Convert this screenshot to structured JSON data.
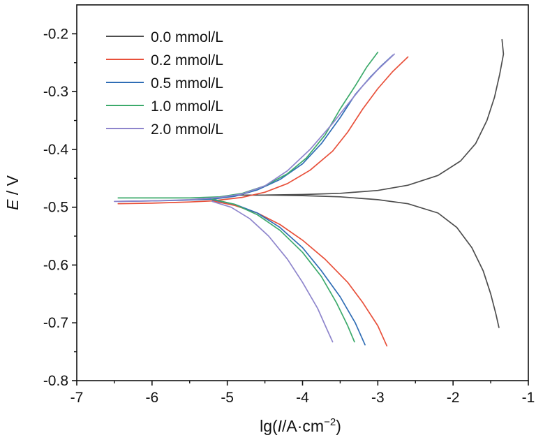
{
  "chart_data": {
    "type": "line",
    "xlabel": "lg(I/A·cm⁻²)",
    "xlabel_parts": {
      "prefix": "lg(",
      "italic": "I",
      "unit": "/A·cm",
      "sup": "−2",
      "suffix": ")"
    },
    "ylabel": "E / V",
    "ylabel_parts": {
      "italic": "E",
      "rest": " / V"
    },
    "xlim": [
      -7,
      -1
    ],
    "ylim": [
      -0.8,
      -0.15
    ],
    "x_ticks": [
      -7,
      -6,
      -5,
      -4,
      -3,
      -2,
      -1
    ],
    "y_ticks": [
      -0.8,
      -0.7,
      -0.6,
      -0.5,
      -0.4,
      -0.3,
      -0.2
    ],
    "x_tick_labels": [
      "-7",
      "-6",
      "-5",
      "-4",
      "-3",
      "-2",
      "-1"
    ],
    "y_tick_labels": [
      "-0.8",
      "-0.7",
      "-0.6",
      "-0.5",
      "-0.4",
      "-0.3",
      "-0.2"
    ],
    "legend_position": "top-left",
    "series": [
      {
        "name": "0.0 mmol/L",
        "color": "#4d4d4d",
        "anodic": [
          [
            -4.85,
            -0.479
          ],
          [
            -4.5,
            -0.479
          ],
          [
            -4.0,
            -0.478
          ],
          [
            -3.5,
            -0.476
          ],
          [
            -3.0,
            -0.471
          ],
          [
            -2.6,
            -0.462
          ],
          [
            -2.2,
            -0.445
          ],
          [
            -1.9,
            -0.42
          ],
          [
            -1.7,
            -0.39
          ],
          [
            -1.55,
            -0.35
          ],
          [
            -1.45,
            -0.31
          ],
          [
            -1.38,
            -0.27
          ],
          [
            -1.33,
            -0.235
          ],
          [
            -1.35,
            -0.21
          ]
        ],
        "cathodic": [
          [
            -4.85,
            -0.479
          ],
          [
            -4.5,
            -0.479
          ],
          [
            -4.0,
            -0.48
          ],
          [
            -3.5,
            -0.482
          ],
          [
            -3.0,
            -0.487
          ],
          [
            -2.6,
            -0.494
          ],
          [
            -2.2,
            -0.51
          ],
          [
            -1.95,
            -0.535
          ],
          [
            -1.75,
            -0.57
          ],
          [
            -1.6,
            -0.61
          ],
          [
            -1.5,
            -0.65
          ],
          [
            -1.43,
            -0.685
          ],
          [
            -1.39,
            -0.708
          ]
        ]
      },
      {
        "name": "0.2 mmol/L",
        "color": "#e8503a",
        "anodic": [
          [
            -6.45,
            -0.494
          ],
          [
            -6.0,
            -0.493
          ],
          [
            -5.5,
            -0.491
          ],
          [
            -5.2,
            -0.489
          ],
          [
            -4.8,
            -0.483
          ],
          [
            -4.5,
            -0.474
          ],
          [
            -4.2,
            -0.459
          ],
          [
            -3.9,
            -0.436
          ],
          [
            -3.6,
            -0.403
          ],
          [
            -3.4,
            -0.37
          ],
          [
            -3.2,
            -0.33
          ],
          [
            -3.0,
            -0.295
          ],
          [
            -2.8,
            -0.265
          ],
          [
            -2.6,
            -0.24
          ]
        ],
        "cathodic": [
          [
            -5.2,
            -0.489
          ],
          [
            -4.9,
            -0.497
          ],
          [
            -4.6,
            -0.51
          ],
          [
            -4.3,
            -0.53
          ],
          [
            -4.0,
            -0.557
          ],
          [
            -3.7,
            -0.59
          ],
          [
            -3.4,
            -0.63
          ],
          [
            -3.2,
            -0.665
          ],
          [
            -3.0,
            -0.705
          ],
          [
            -2.88,
            -0.74
          ]
        ]
      },
      {
        "name": "0.5 mmol/L",
        "color": "#2f6db5",
        "anodic": [
          [
            -6.45,
            -0.49
          ],
          [
            -6.0,
            -0.489
          ],
          [
            -5.6,
            -0.488
          ],
          [
            -5.2,
            -0.486
          ],
          [
            -4.9,
            -0.481
          ],
          [
            -4.6,
            -0.47
          ],
          [
            -4.3,
            -0.452
          ],
          [
            -4.0,
            -0.425
          ],
          [
            -3.75,
            -0.39
          ],
          [
            -3.5,
            -0.345
          ],
          [
            -3.3,
            -0.305
          ],
          [
            -3.1,
            -0.275
          ],
          [
            -2.95,
            -0.255
          ],
          [
            -2.8,
            -0.237
          ]
        ],
        "cathodic": [
          [
            -5.2,
            -0.487
          ],
          [
            -4.9,
            -0.495
          ],
          [
            -4.6,
            -0.51
          ],
          [
            -4.3,
            -0.535
          ],
          [
            -4.0,
            -0.57
          ],
          [
            -3.75,
            -0.61
          ],
          [
            -3.5,
            -0.655
          ],
          [
            -3.3,
            -0.7
          ],
          [
            -3.17,
            -0.738
          ]
        ]
      },
      {
        "name": "1.0 mmol/L",
        "color": "#3caa6b",
        "anodic": [
          [
            -6.45,
            -0.484
          ],
          [
            -6.0,
            -0.484
          ],
          [
            -5.5,
            -0.484
          ],
          [
            -5.1,
            -0.482
          ],
          [
            -4.8,
            -0.476
          ],
          [
            -4.5,
            -0.463
          ],
          [
            -4.2,
            -0.442
          ],
          [
            -3.95,
            -0.415
          ],
          [
            -3.7,
            -0.375
          ],
          [
            -3.5,
            -0.33
          ],
          [
            -3.3,
            -0.29
          ],
          [
            -3.15,
            -0.258
          ],
          [
            -3.0,
            -0.232
          ]
        ],
        "cathodic": [
          [
            -5.2,
            -0.486
          ],
          [
            -4.9,
            -0.495
          ],
          [
            -4.6,
            -0.513
          ],
          [
            -4.3,
            -0.54
          ],
          [
            -4.0,
            -0.578
          ],
          [
            -3.75,
            -0.62
          ],
          [
            -3.55,
            -0.665
          ],
          [
            -3.4,
            -0.705
          ],
          [
            -3.31,
            -0.733
          ]
        ]
      },
      {
        "name": "2.0 mmol/L",
        "color": "#8e85cc",
        "anodic": [
          [
            -6.5,
            -0.49
          ],
          [
            -6.0,
            -0.489
          ],
          [
            -5.5,
            -0.487
          ],
          [
            -5.1,
            -0.483
          ],
          [
            -4.8,
            -0.477
          ],
          [
            -4.5,
            -0.463
          ],
          [
            -4.2,
            -0.437
          ],
          [
            -3.9,
            -0.4
          ],
          [
            -3.6,
            -0.355
          ],
          [
            -3.4,
            -0.322
          ],
          [
            -3.2,
            -0.29
          ],
          [
            -3.0,
            -0.262
          ],
          [
            -2.78,
            -0.235
          ]
        ],
        "cathodic": [
          [
            -5.2,
            -0.49
          ],
          [
            -4.95,
            -0.5
          ],
          [
            -4.7,
            -0.52
          ],
          [
            -4.45,
            -0.55
          ],
          [
            -4.2,
            -0.59
          ],
          [
            -4.0,
            -0.63
          ],
          [
            -3.8,
            -0.675
          ],
          [
            -3.68,
            -0.71
          ],
          [
            -3.6,
            -0.733
          ]
        ]
      }
    ]
  }
}
